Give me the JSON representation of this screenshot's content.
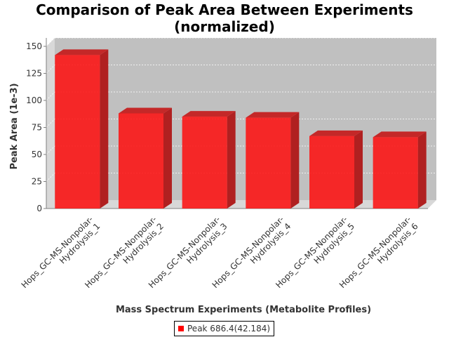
{
  "chart_data": {
    "type": "bar",
    "title_line1": "Comparison of Peak Area Between Experiments",
    "title_line2": "(normalized)",
    "xlabel": "Mass Spectrum Experiments (Metabolite Profiles)",
    "ylabel": "Peak Area (1e-3)",
    "categories": [
      [
        "Hops_GC-MS-Nonpolar-",
        "Hydrolysis_1"
      ],
      [
        "Hops_GC-MS-Nonpolar-",
        "Hydrolysis_2"
      ],
      [
        "Hops_GC-MS-Nonpolar-",
        "Hydrolysis_3"
      ],
      [
        "Hops_GC-MS-Nonpolar-",
        "Hydrolysis_4"
      ],
      [
        "Hops_GC-MS-Nonpolar-",
        "Hydrolysis_5"
      ],
      [
        "Hops_GC-MS-Nonpolar-",
        "Hydrolysis_6"
      ]
    ],
    "series": [
      {
        "name": "Peak 686.4(42.184)",
        "values": [
          142,
          88,
          85,
          84,
          67,
          66
        ]
      }
    ],
    "ylim": [
      0,
      150
    ],
    "yticks": [
      "0",
      "25",
      "50",
      "75",
      "100",
      "125",
      "150"
    ],
    "grid": true,
    "legend_position": "bottom-center",
    "colors": {
      "bar": "#ff0000",
      "plot_background": "#c0c0c0",
      "gridline": "#ffffff"
    }
  }
}
